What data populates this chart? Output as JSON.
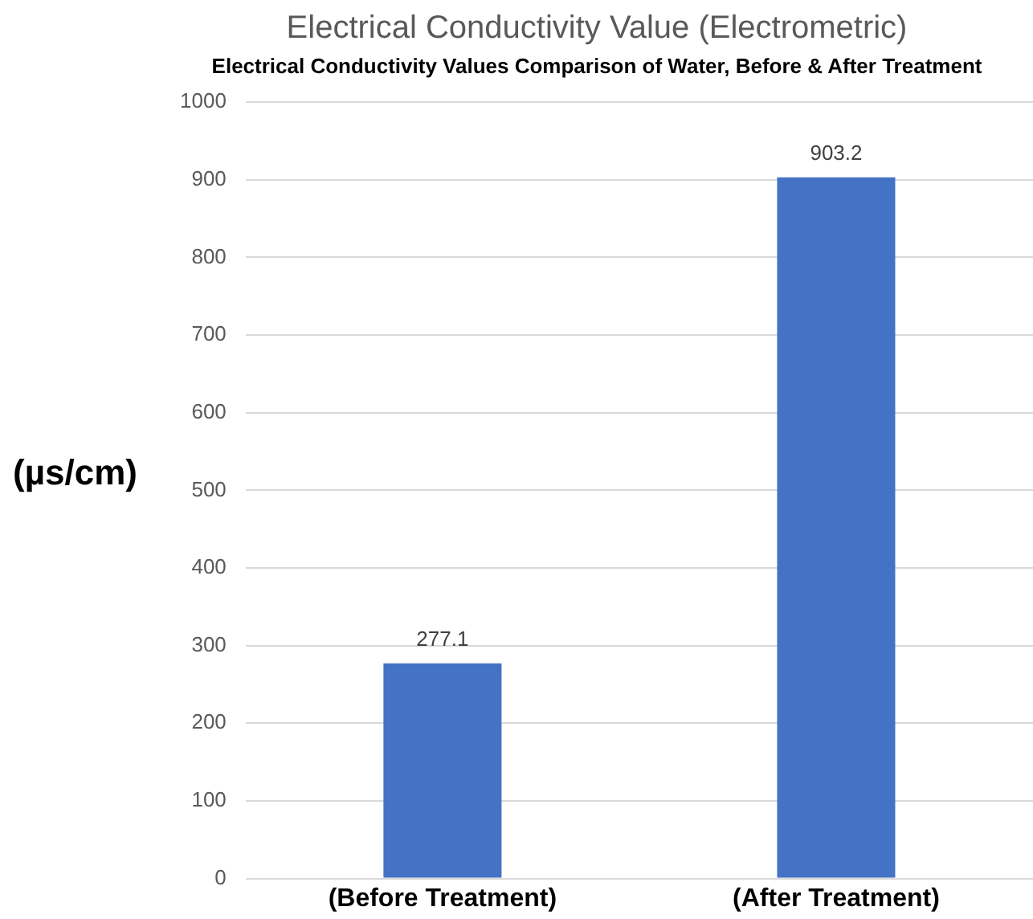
{
  "chart_data": {
    "type": "bar",
    "title": "Electrical Conductivity Value (Electrometric)",
    "subtitle": "Electrical Conductivity Values Comparison of Water, Before & After Treatment",
    "ylabel": "(µs/cm)",
    "categories": [
      "(Before Treatment)",
      "(After Treatment)"
    ],
    "values": [
      277.1,
      903.2
    ],
    "color": "#4472c4",
    "ylim": [
      0,
      1000
    ],
    "yticks": [
      0,
      100,
      200,
      300,
      400,
      500,
      600,
      700,
      800,
      900,
      1000
    ],
    "grid": "y",
    "data_labels": true
  }
}
